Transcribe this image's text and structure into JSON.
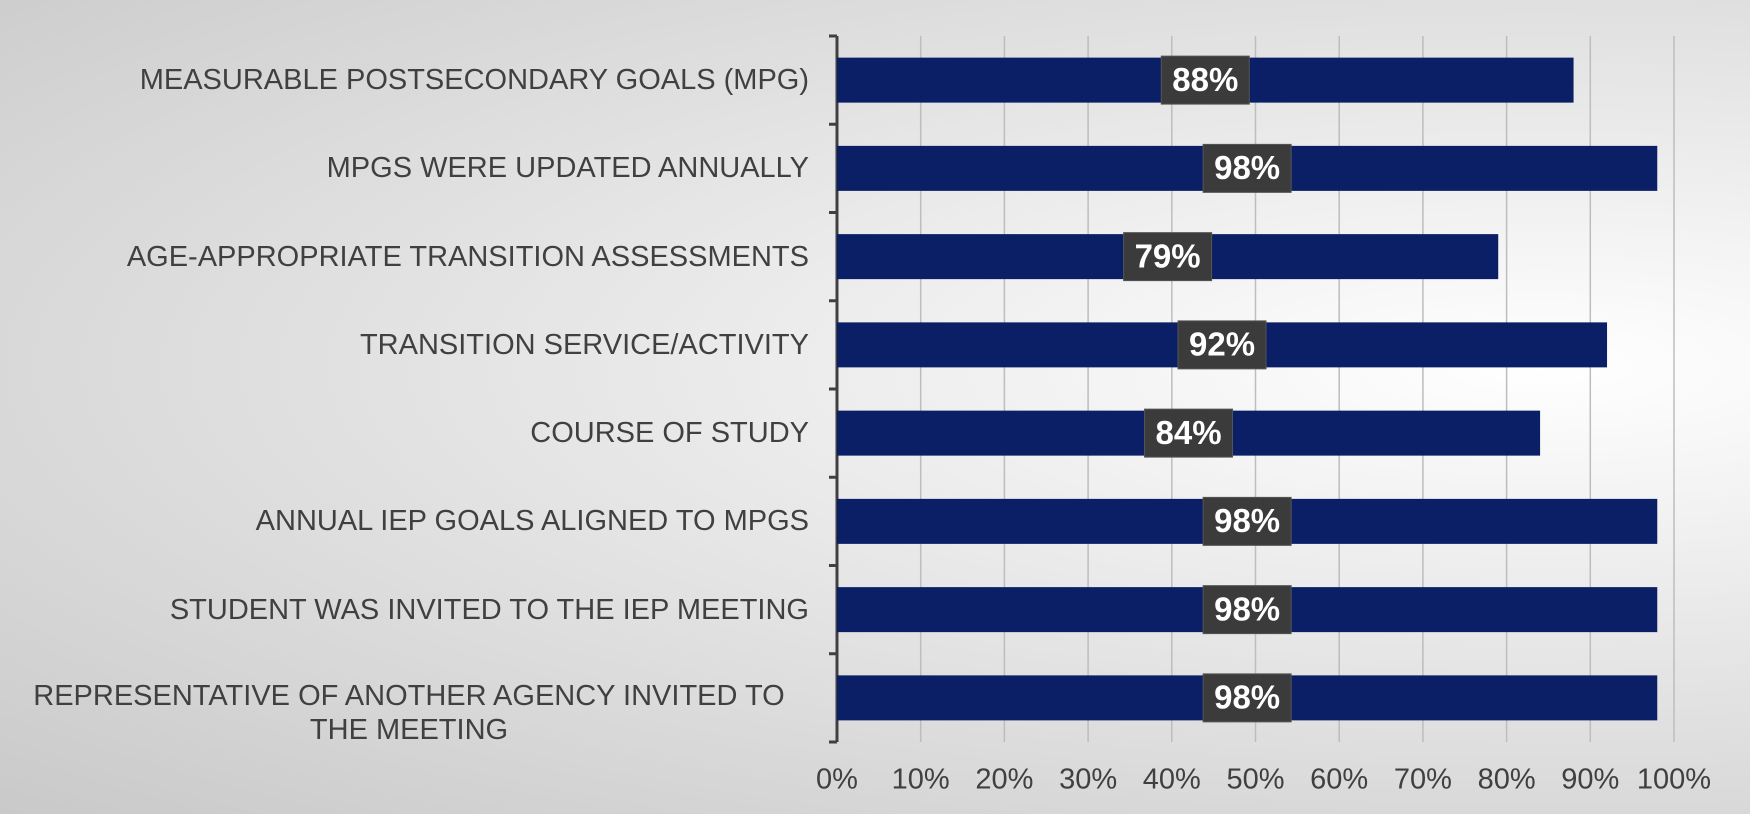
{
  "chart_data": {
    "type": "bar",
    "orientation": "horizontal",
    "categories": [
      "MEASURABLE POSTSECONDARY GOALS (MPG)",
      "MPGS WERE UPDATED ANNUALLY",
      "AGE-APPROPRIATE TRANSITION ASSESSMENTS",
      "TRANSITION SERVICE/ACTIVITY",
      "COURSE OF STUDY",
      "ANNUAL IEP GOALS ALIGNED TO MPGS",
      "STUDENT WAS INVITED TO THE IEP MEETING",
      "REPRESENTATIVE OF ANOTHER AGENCY INVITED TO THE MEETING"
    ],
    "values": [
      88,
      98,
      79,
      92,
      84,
      98,
      98,
      98
    ],
    "value_labels": [
      "88%",
      "98%",
      "79%",
      "92%",
      "84%",
      "98%",
      "98%",
      "98%"
    ],
    "color": "#0b1f66",
    "xlim": [
      0,
      100
    ],
    "xticks": [
      {
        "value": 0,
        "label": "0%"
      },
      {
        "value": 10,
        "label": "10%"
      },
      {
        "value": 20,
        "label": "20%"
      },
      {
        "value": 30,
        "label": "30%"
      },
      {
        "value": 40,
        "label": "40%"
      },
      {
        "value": 50,
        "label": "50%"
      },
      {
        "value": 60,
        "label": "60%"
      },
      {
        "value": 70,
        "label": "70%"
      },
      {
        "value": 80,
        "label": "80%"
      },
      {
        "value": 90,
        "label": "90%"
      },
      {
        "value": 100,
        "label": "100%"
      }
    ],
    "grid": true
  }
}
